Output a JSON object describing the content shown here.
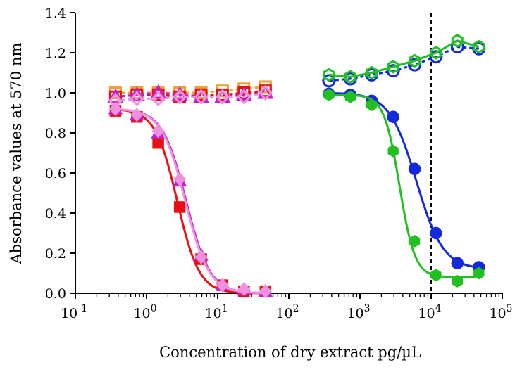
{
  "chart_data": {
    "type": "scatter",
    "title": "",
    "xlabel": "Concentration of dry extract pg/µL",
    "ylabel": "Absorbance values at 570 nm",
    "x_scale": "log",
    "xlim": [
      0.1,
      100000
    ],
    "ylim": [
      0.0,
      1.4
    ],
    "x_ticks": [
      {
        "value": 0.1,
        "base": "10",
        "exp": "-1"
      },
      {
        "value": 1,
        "base": "10",
        "exp": "0"
      },
      {
        "value": 10,
        "base": "10",
        "exp": "1"
      },
      {
        "value": 100,
        "base": "10",
        "exp": "2"
      },
      {
        "value": 1000,
        "base": "10",
        "exp": "3"
      },
      {
        "value": 10000,
        "base": "10",
        "exp": "4"
      },
      {
        "value": 100000,
        "base": "10",
        "exp": "5"
      }
    ],
    "y_ticks": [
      "0.0",
      "0.2",
      "0.4",
      "0.6",
      "0.8",
      "1.0",
      "1.2",
      "1.4"
    ],
    "grid": false,
    "legend": "none",
    "reference_line": {
      "x": 10000,
      "style": "dashed",
      "color": "#000000"
    },
    "series": [
      {
        "marker": "square",
        "filled": false,
        "color": "#f0a030",
        "dashed": true,
        "x": [
          0.366,
          0.732,
          1.46,
          2.93,
          5.86,
          11.7,
          23.4,
          46.9
        ],
        "y": [
          1.0,
          1.0,
          1.0,
          1.0,
          1.0,
          1.01,
          1.02,
          1.03
        ]
      },
      {
        "marker": "square",
        "filled": true,
        "color": "#e81010",
        "dashed": false,
        "x": [
          0.366,
          0.732,
          1.46,
          2.93,
          5.86,
          11.7,
          23.4,
          46.9
        ],
        "y": [
          0.91,
          0.88,
          0.75,
          0.43,
          0.17,
          0.04,
          0.01,
          0.01
        ],
        "fit": {
          "top": 0.92,
          "bottom": 0.0,
          "ec50": 2.7,
          "hill": 2.8
        }
      },
      {
        "marker": "square",
        "filled": false,
        "color": "#e81010",
        "dashed": true,
        "x": [
          0.366,
          0.732,
          1.46,
          2.93,
          5.86,
          11.7,
          23.4,
          46.9
        ],
        "y": [
          0.98,
          0.99,
          0.99,
          0.98,
          0.99,
          0.99,
          1.0,
          1.01
        ]
      },
      {
        "marker": "triangle",
        "filled": true,
        "color": "#c020d0",
        "dashed": false,
        "x": [
          0.366,
          0.732,
          1.46,
          2.93,
          5.86,
          11.7,
          23.4,
          46.9
        ],
        "y": [
          0.92,
          0.89,
          0.8,
          0.56,
          0.19,
          0.04,
          0.02,
          0.01
        ],
        "fit": {
          "top": 0.92,
          "bottom": 0.0,
          "ec50": 3.6,
          "hill": 2.6
        }
      },
      {
        "marker": "triangle",
        "filled": false,
        "color": "#c020d0",
        "dashed": true,
        "x": [
          0.366,
          0.732,
          1.46,
          2.93,
          5.86,
          11.7,
          23.4,
          46.9
        ],
        "y": [
          0.98,
          0.99,
          1.0,
          0.99,
          0.98,
          0.98,
          0.99,
          1.0
        ]
      },
      {
        "marker": "diamond",
        "filled": true,
        "color": "#f090e0",
        "dashed": false,
        "x": [
          0.366,
          0.732,
          1.46,
          2.93,
          5.86,
          11.7,
          23.4,
          46.9
        ],
        "y": [
          0.92,
          0.89,
          0.81,
          0.57,
          0.18,
          0.04,
          0.02,
          0.01
        ],
        "fit": {
          "top": 0.92,
          "bottom": 0.0,
          "ec50": 3.5,
          "hill": 2.6
        }
      },
      {
        "marker": "diamond",
        "filled": false,
        "color": "#f090e0",
        "dashed": true,
        "x": [
          0.366,
          0.732,
          1.46,
          2.93,
          5.86,
          11.7,
          23.4,
          46.9
        ],
        "y": [
          0.96,
          0.97,
          0.97,
          0.98,
          0.98,
          0.98,
          0.98,
          1.0
        ]
      },
      {
        "marker": "circle",
        "filled": true,
        "color": "#1428dc",
        "dashed": false,
        "x": [
          366,
          732,
          1460,
          2930,
          5860,
          11700,
          23400,
          46900
        ],
        "y": [
          0.995,
          0.99,
          0.96,
          0.88,
          0.62,
          0.3,
          0.15,
          0.13
        ],
        "fit": {
          "top": 1.0,
          "bottom": 0.12,
          "ec50": 6200,
          "hill": 2.3
        }
      },
      {
        "marker": "circle",
        "filled": false,
        "color": "#1428dc",
        "dashed": true,
        "x": [
          366,
          732,
          1460,
          2930,
          5860,
          11700,
          23400,
          46900
        ],
        "y": [
          1.06,
          1.07,
          1.09,
          1.11,
          1.14,
          1.18,
          1.23,
          1.22
        ]
      },
      {
        "marker": "hexagon",
        "filled": true,
        "color": "#20c020",
        "dashed": false,
        "x": [
          366,
          732,
          1460,
          2930,
          5860,
          11700,
          23400,
          46900
        ],
        "y": [
          0.99,
          0.98,
          0.94,
          0.71,
          0.26,
          0.09,
          0.06,
          0.1
        ],
        "fit": {
          "top": 0.99,
          "bottom": 0.08,
          "ec50": 3600,
          "hill": 4.0
        }
      },
      {
        "marker": "hexagon",
        "filled": false,
        "color": "#20c020",
        "dashed": false,
        "x": [
          366,
          732,
          1460,
          2930,
          5860,
          11700,
          23400,
          46900
        ],
        "y": [
          1.09,
          1.08,
          1.1,
          1.13,
          1.16,
          1.2,
          1.26,
          1.23
        ]
      }
    ]
  }
}
